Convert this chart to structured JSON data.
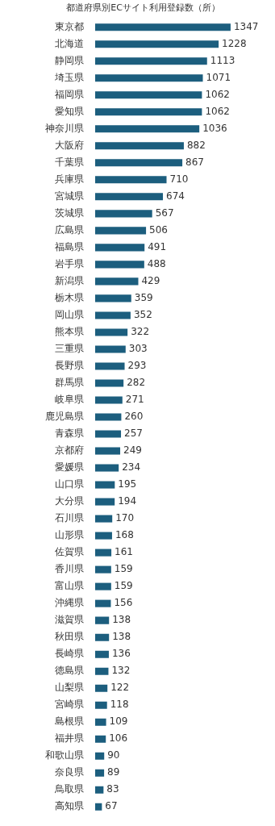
{
  "chart_data": {
    "type": "bar",
    "orientation": "horizontal",
    "title": "都道府県別ECサイト利用登録数（所）",
    "data_labels": true,
    "legend": false,
    "tick_labels": "y",
    "color": "#1c5e7e",
    "categories": [
      "東京都",
      "北海道",
      "静岡県",
      "埼玉県",
      "福岡県",
      "愛知県",
      "神奈川県",
      "大阪府",
      "千葉県",
      "兵庫県",
      "宮城県",
      "茨城県",
      "広島県",
      "福島県",
      "岩手県",
      "新潟県",
      "栃木県",
      "岡山県",
      "熊本県",
      "三重県",
      "長野県",
      "群馬県",
      "岐阜県",
      "鹿児島県",
      "青森県",
      "京都府",
      "愛媛県",
      "山口県",
      "大分県",
      "石川県",
      "山形県",
      "佐賀県",
      "香川県",
      "富山県",
      "沖縄県",
      "滋賀県",
      "秋田県",
      "長崎県",
      "徳島県",
      "山梨県",
      "宮崎県",
      "島根県",
      "福井県",
      "和歌山県",
      "奈良県",
      "鳥取県",
      "高知県"
    ],
    "values": [
      1347,
      1228,
      1113,
      1071,
      1062,
      1062,
      1036,
      882,
      867,
      710,
      674,
      567,
      506,
      491,
      488,
      429,
      359,
      352,
      322,
      303,
      293,
      282,
      271,
      260,
      257,
      249,
      234,
      195,
      194,
      170,
      168,
      161,
      159,
      159,
      156,
      138,
      138,
      136,
      132,
      122,
      118,
      109,
      106,
      90,
      89,
      83,
      67
    ]
  }
}
